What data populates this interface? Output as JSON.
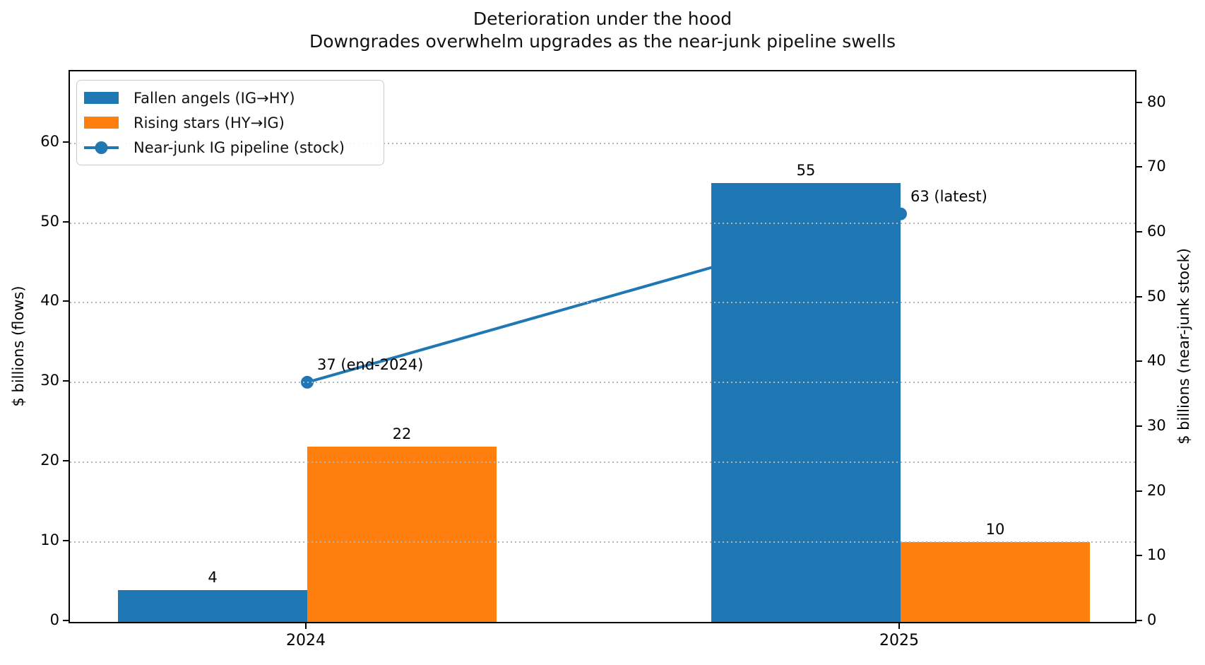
{
  "chart_data": {
    "type": "bar+line dual-axis",
    "title": "Deterioration under the hood",
    "subtitle": "Downgrades overwhelm upgrades as the near-junk pipeline swells",
    "categories": [
      "2024",
      "2025"
    ],
    "series": [
      {
        "name": "Fallen angels (IG→HY)",
        "chart_type": "bar",
        "axis": "left",
        "color": "#1f77b4",
        "values": [
          4,
          55
        ]
      },
      {
        "name": "Rising stars (HY→IG)",
        "chart_type": "bar",
        "axis": "left",
        "color": "#ff7f0e",
        "values": [
          22,
          10
        ]
      },
      {
        "name": "Near-junk IG pipeline (stock)",
        "chart_type": "line",
        "axis": "right",
        "color": "#1f77b4",
        "values": [
          37,
          63
        ],
        "point_labels": [
          "37 (end-2024)",
          "63 (latest)"
        ]
      }
    ],
    "bar_value_labels": [
      "4",
      "55",
      "22",
      "10"
    ],
    "left_axis": {
      "label": "$ billions (flows)",
      "ticks": [
        0,
        10,
        20,
        30,
        40,
        50,
        60
      ],
      "lim": [
        0,
        69
      ]
    },
    "right_axis": {
      "label": "$ billions (near-junk stock)",
      "ticks": [
        0,
        10,
        20,
        30,
        40,
        50,
        60,
        70,
        80
      ],
      "lim": [
        0,
        85
      ]
    },
    "grid": "horizontal dotted at left-axis ticks, drawn above bars",
    "legend_position": "upper left",
    "grid_color": "#b4b4b4"
  }
}
